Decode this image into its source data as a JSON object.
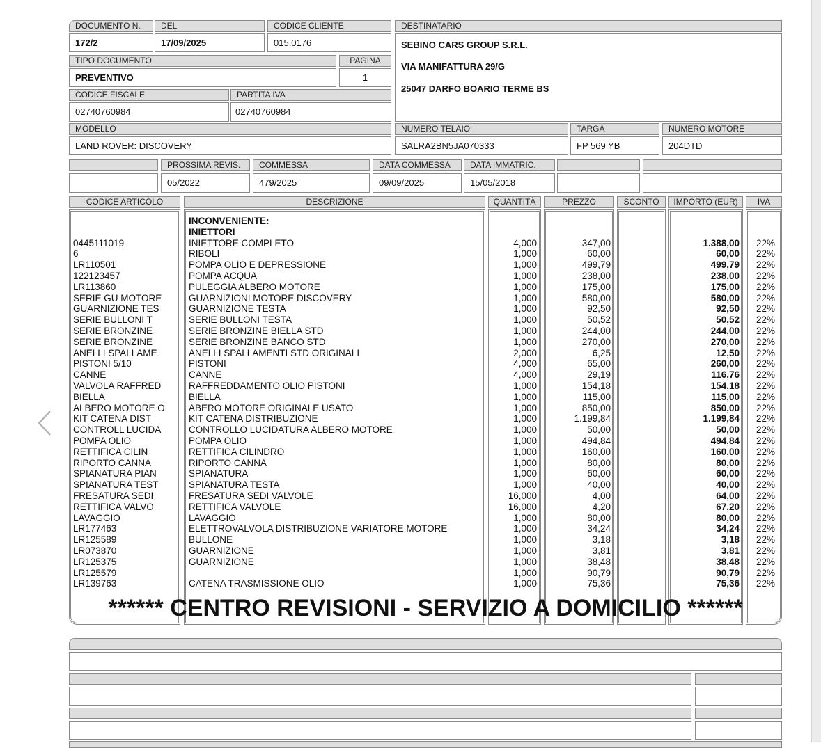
{
  "header": {
    "documento_label": "DOCUMENTO N.",
    "documento": "172/2",
    "del_label": "DEL",
    "del": "17/09/2025",
    "codice_cliente_label": "CODICE CLIENTE",
    "codice_cliente": "015.0176",
    "destinatario_label": "DESTINATARIO",
    "destinatario": [
      "SEBINO CARS GROUP S.R.L.",
      "VIA MANIFATTURA 29/G",
      "25047 DARFO BOARIO TERME BS"
    ],
    "tipo_documento_label": "TIPO DOCUMENTO",
    "tipo_documento": "PREVENTIVO",
    "pagina_label": "PAGINA",
    "pagina": "1",
    "codice_fiscale_label": "CODICE FISCALE",
    "codice_fiscale": "02740760984",
    "partita_iva_label": "PARTITA IVA",
    "partita_iva": "02740760984",
    "modello_label": "MODELLO",
    "modello": "LAND ROVER: DISCOVERY",
    "telaio_label": "NUMERO TELAIO",
    "telaio": "SALRA2BN5JA070333",
    "targa_label": "TARGA",
    "targa": "FP 569 YB",
    "motore_label": "NUMERO MOTORE",
    "motore": "204DTD",
    "prossima_revis_label": "PROSSIMA REVIS.",
    "prossima_revis": "05/2022",
    "commessa_label": "COMMESSA",
    "commessa": "479/2025",
    "data_commessa_label": "DATA COMMESSA",
    "data_commessa": "09/09/2025",
    "data_immatric_label": "DATA IMMATRIC.",
    "data_immatric": "15/05/2018"
  },
  "table": {
    "columns": [
      "CODICE ARTICOLO",
      "DESCRIZIONE",
      "QUANTITÀ",
      "PREZZO",
      "SCONTO",
      "IMPORTO (EUR)",
      "IVA"
    ],
    "intro": [
      "INCONVENIENTE:",
      "INIETTORI"
    ],
    "rows": [
      [
        "0445111019",
        "INIETTORE COMPLETO",
        "4,000",
        "347,00",
        "",
        "1.388,00",
        "22%"
      ],
      [
        "6",
        "RIBOLI",
        "1,000",
        "60,00",
        "",
        "60,00",
        "22%"
      ],
      [
        "LR110501",
        "POMPA OLIO E DEPRESSIONE",
        "1,000",
        "499,79",
        "",
        "499,79",
        "22%"
      ],
      [
        "122123457",
        "POMPA ACQUA",
        "1,000",
        "238,00",
        "",
        "238,00",
        "22%"
      ],
      [
        "LR113860",
        "PULEGGIA ALBERO MOTORE",
        "1,000",
        "175,00",
        "",
        "175,00",
        "22%"
      ],
      [
        "SERIE GU MOTORE",
        "GUARNIZIONI MOTORE DISCOVERY",
        "1,000",
        "580,00",
        "",
        "580,00",
        "22%"
      ],
      [
        "GUARNIZIONE TES",
        "GUARNIZIONE TESTA",
        "1,000",
        "92,50",
        "",
        "92,50",
        "22%"
      ],
      [
        "SERIE BULLONI T",
        "SERIE BULLONI TESTA",
        "1,000",
        "50,52",
        "",
        "50,52",
        "22%"
      ],
      [
        "SERIE BRONZINE",
        "SERIE BRONZINE BIELLA STD",
        "1,000",
        "244,00",
        "",
        "244,00",
        "22%"
      ],
      [
        "SERIE BRONZINE",
        "SERIE BRONZINE BANCO STD",
        "1,000",
        "270,00",
        "",
        "270,00",
        "22%"
      ],
      [
        "ANELLI SPALLAME",
        "ANELLI SPALLAMENTI STD ORIGINALI",
        "2,000",
        "6,25",
        "",
        "12,50",
        "22%"
      ],
      [
        "PISTONI 5/10",
        "PISTONI",
        "4,000",
        "65,00",
        "",
        "260,00",
        "22%"
      ],
      [
        "CANNE",
        "CANNE",
        "4,000",
        "29,19",
        "",
        "116,76",
        "22%"
      ],
      [
        "VALVOLA RAFFRED",
        "RAFFREDDAMENTO OLIO PISTONI",
        "1,000",
        "154,18",
        "",
        "154,18",
        "22%"
      ],
      [
        "BIELLA",
        "BIELLA",
        "1,000",
        "115,00",
        "",
        "115,00",
        "22%"
      ],
      [
        "ALBERO MOTORE O",
        "ABERO MOTORE ORIGINALE USATO",
        "1,000",
        "850,00",
        "",
        "850,00",
        "22%"
      ],
      [
        "KIT CATENA DIST",
        "KIT CATENA DISTRIBUZIONE",
        "1,000",
        "1.199,84",
        "",
        "1.199,84",
        "22%"
      ],
      [
        "CONTROLL LUCIDA",
        "CONTROLLO LUCIDATURA ALBERO MOTORE",
        "1,000",
        "50,00",
        "",
        "50,00",
        "22%"
      ],
      [
        "POMPA OLIO",
        "POMPA OLIO",
        "1,000",
        "494,84",
        "",
        "494,84",
        "22%"
      ],
      [
        "RETTIFICA CILIN",
        "RETTIFICA CILINDRO",
        "1,000",
        "160,00",
        "",
        "160,00",
        "22%"
      ],
      [
        "RIPORTO CANNA",
        "RIPORTO CANNA",
        "1,000",
        "80,00",
        "",
        "80,00",
        "22%"
      ],
      [
        "SPIANATURA PIAN",
        "SPIANATURA",
        "1,000",
        "60,00",
        "",
        "60,00",
        "22%"
      ],
      [
        "SPIANATURA TEST",
        "SPIANATURA TESTA",
        "1,000",
        "40,00",
        "",
        "40,00",
        "22%"
      ],
      [
        "FRESATURA SEDI",
        "FRESATURA SEDI VALVOLE",
        "16,000",
        "4,00",
        "",
        "64,00",
        "22%"
      ],
      [
        "RETTIFICA VALVO",
        "RETTIFICA VALVOLE",
        "16,000",
        "4,20",
        "",
        "67,20",
        "22%"
      ],
      [
        "LAVAGGIO",
        "LAVAGGIO",
        "1,000",
        "80,00",
        "",
        "80,00",
        "22%"
      ],
      [
        "LR177463",
        "ELETTROVALVOLA DISTRIBUZIONE VARIATORE MOTORE",
        "1,000",
        "34,24",
        "",
        "34,24",
        "22%"
      ],
      [
        "LR125589",
        "BULLONE",
        "1,000",
        "3,18",
        "",
        "3,18",
        "22%"
      ],
      [
        "LR073870",
        "GUARNIZIONE",
        "1,000",
        "3,81",
        "",
        "3,81",
        "22%"
      ],
      [
        "LR125375",
        "GUARNIZIONE",
        "1,000",
        "38,48",
        "",
        "38,48",
        "22%"
      ],
      [
        "LR125579",
        "",
        "1,000",
        "90,79",
        "",
        "90,79",
        "22%"
      ],
      [
        "LR139763",
        "CATENA TRASMISSIONE OLIO",
        "1,000",
        "75,36",
        "",
        "75,36",
        "22%"
      ]
    ],
    "banner": "****** CENTRO REVISIONI - SERVIZIO A DOMICILIO ******"
  },
  "viewer": {
    "prev_icon": "chevron-left-icon"
  }
}
